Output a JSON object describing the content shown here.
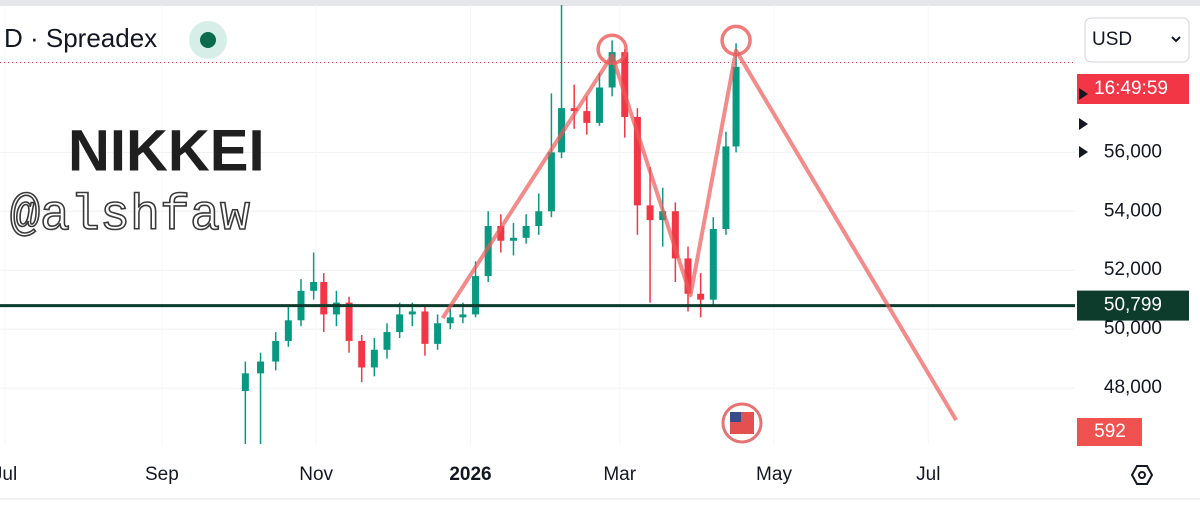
{
  "chart_data": {
    "type": "candlestick",
    "symbol": "D · Spreadex",
    "watermark_title": "NIKKEI",
    "watermark_handle": "@alshfaw",
    "currency": "USD",
    "countdown": "16:49:59",
    "volume_badge": "592",
    "price_line": {
      "value": 50799,
      "label": "50,799"
    },
    "dotted_level": 59050,
    "up_color": "#089981",
    "down_color": "#f23645",
    "x": [
      95,
      101,
      107,
      112,
      117,
      122,
      126,
      131,
      136,
      141,
      146,
      151,
      156,
      161,
      166,
      171,
      176,
      181,
      186,
      191,
      196,
      201,
      206,
      211,
      216,
      220,
      225,
      230,
      235,
      240,
      245,
      250,
      255,
      260,
      265,
      270,
      275,
      280,
      285,
      289
    ],
    "open": [
      47900,
      48500,
      48900,
      49600,
      50300,
      51300,
      51600,
      50500,
      50900,
      49600,
      48700,
      49300,
      49900,
      50500,
      50600,
      49500,
      50200,
      50400,
      50500,
      51800,
      53500,
      53000,
      53100,
      53500,
      54000,
      56000,
      57500,
      57400,
      57000,
      58200,
      59400,
      57200,
      54200,
      53700,
      54000,
      52400,
      51200,
      51000,
      53400,
      56200
    ],
    "high": [
      48900,
      49200,
      49900,
      50800,
      51700,
      52600,
      51900,
      51300,
      51100,
      49800,
      49700,
      50200,
      50900,
      50900,
      50800,
      50500,
      50700,
      50900,
      52300,
      54000,
      53900,
      53600,
      53900,
      54600,
      58000,
      61000,
      58300,
      57900,
      58700,
      59800,
      59500,
      57500,
      55500,
      54800,
      54300,
      52800,
      51900,
      53800,
      56700,
      59700
    ],
    "low": [
      46100,
      46100,
      48600,
      49400,
      50100,
      51000,
      49900,
      50100,
      49200,
      48200,
      48400,
      49000,
      49700,
      50100,
      49100,
      49300,
      50000,
      50200,
      50400,
      51600,
      52600,
      52500,
      52900,
      53200,
      53800,
      55800,
      56800,
      56600,
      56900,
      57900,
      56500,
      53200,
      50900,
      52800,
      51600,
      50600,
      50400,
      50800,
      53200,
      56000
    ],
    "close": [
      48500,
      48900,
      49600,
      50300,
      51300,
      51600,
      50500,
      50900,
      49600,
      48700,
      49300,
      49900,
      50500,
      50600,
      49500,
      50200,
      50400,
      50500,
      51800,
      53500,
      53000,
      53100,
      53500,
      54000,
      56000,
      57500,
      57400,
      57000,
      58200,
      59400,
      57200,
      54200,
      53700,
      54000,
      52400,
      51200,
      51000,
      53400,
      56200,
      58900
    ],
    "drawing": {
      "x": [
        173,
        240,
        271,
        289,
        376
      ],
      "y": [
        50373,
        59289,
        51153,
        59458,
        46915
      ],
      "color": "#ee5a5a"
    },
    "circles": {
      "x": [
        240,
        289
      ],
      "y": [
        59500,
        59800
      ]
    },
    "xlim": [
      -2,
      423
    ],
    "xticks": [
      {
        "value": 0,
        "label": "Jul"
      },
      {
        "value": 62,
        "label": "Sep"
      },
      {
        "value": 123,
        "label": "Nov"
      },
      {
        "value": 184,
        "label": "2026"
      },
      {
        "value": 243,
        "label": "Mar"
      },
      {
        "value": 304,
        "label": "May"
      },
      {
        "value": 365,
        "label": "Jul"
      }
    ],
    "ylim": [
      46068,
      61000
    ],
    "yticks": [
      {
        "value": 48000,
        "label": "48,000"
      },
      {
        "value": 50000,
        "label": "50,000"
      },
      {
        "value": 52000,
        "label": "52,000"
      },
      {
        "value": 54000,
        "label": "54,000"
      },
      {
        "value": 56000,
        "label": "56,000"
      }
    ],
    "grid": true
  }
}
